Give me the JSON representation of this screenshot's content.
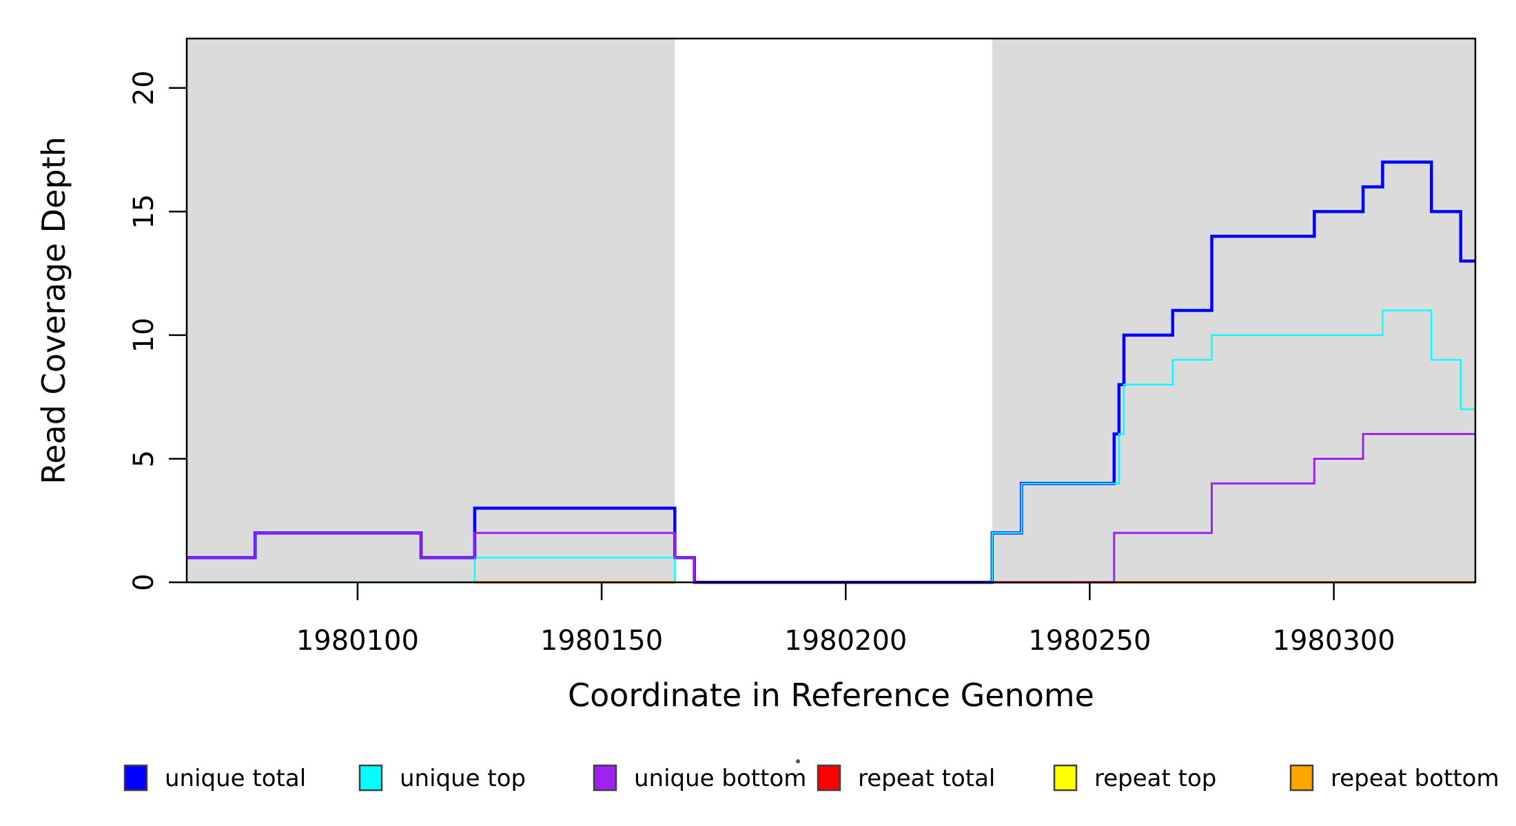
{
  "chart_data": {
    "type": "line",
    "subtype": "step-coverage-plot",
    "title": "",
    "xlabel": "Coordinate in Reference Genome",
    "ylabel": "Read Coverage Depth",
    "xlim": [
      1980065,
      1980329
    ],
    "ylim": [
      0,
      22
    ],
    "x_ticks": [
      1980100,
      1980150,
      1980200,
      1980250,
      1980300
    ],
    "y_ticks": [
      0,
      5,
      10,
      15,
      20
    ],
    "grid": false,
    "background": "#FFFFFF",
    "box_color": "#000000",
    "shade_color": "#DBDBDB",
    "shaded_regions": [
      [
        1980065,
        1980165
      ],
      [
        1980230,
        1980329
      ]
    ],
    "draw_order": [
      "unique total",
      "unique top",
      "repeat top",
      "repeat total",
      "repeat bottom",
      "unique bottom"
    ],
    "series": [
      {
        "name": "unique total",
        "color": "#0000FF",
        "lwd": 4.5,
        "parts": [
          [
            [
              1980065,
              1
            ],
            [
              1980079,
              2
            ],
            [
              1980113,
              1
            ],
            [
              1980124,
              3
            ],
            [
              1980165,
              1
            ],
            [
              1980169,
              0
            ],
            [
              1980230,
              2
            ],
            [
              1980236,
              4
            ],
            [
              1980255,
              6
            ],
            [
              1980256,
              8
            ],
            [
              1980257,
              10
            ],
            [
              1980267,
              11
            ],
            [
              1980275,
              14
            ],
            [
              1980296,
              15
            ],
            [
              1980306,
              16
            ],
            [
              1980310,
              17
            ],
            [
              1980320,
              15
            ],
            [
              1980326,
              13
            ],
            [
              1980329,
              13
            ]
          ]
        ]
      },
      {
        "name": "unique top",
        "color": "#00FFFF",
        "lwd": 2.4,
        "parts": [
          [
            [
              1980065,
              0
            ],
            [
              1980124,
              1
            ],
            [
              1980165,
              0
            ]
          ],
          [
            [
              1980230,
              0
            ],
            [
              1980230,
              2
            ],
            [
              1980236,
              4
            ],
            [
              1980256,
              6
            ],
            [
              1980257,
              8
            ],
            [
              1980267,
              9
            ],
            [
              1980275,
              10
            ],
            [
              1980310,
              11
            ],
            [
              1980320,
              9
            ],
            [
              1980326,
              7
            ],
            [
              1980329,
              7
            ]
          ]
        ]
      },
      {
        "name": "unique bottom",
        "color": "#A020F0",
        "lwd": 3,
        "parts": [
          [
            [
              1980065,
              1
            ],
            [
              1980079,
              2
            ],
            [
              1980113,
              1
            ],
            [
              1980124,
              2
            ],
            [
              1980165,
              1
            ],
            [
              1980169,
              0
            ],
            [
              1980255,
              2
            ],
            [
              1980275,
              4
            ],
            [
              1980296,
              5
            ],
            [
              1980306,
              6
            ],
            [
              1980329,
              6
            ]
          ]
        ]
      },
      {
        "name": "repeat total",
        "color": "#FF0000",
        "lwd": 3.6,
        "parts": [
          [
            [
              1980230,
              0
            ],
            [
              1980255,
              0
            ]
          ]
        ]
      },
      {
        "name": "repeat top",
        "color": "#FFFF00",
        "lwd": 3.2,
        "parts": [
          [
            [
              1980124,
              0
            ],
            [
              1980165,
              0
            ]
          ],
          [
            [
              1980255,
              0
            ],
            [
              1980329,
              0
            ]
          ]
        ]
      },
      {
        "name": "repeat bottom",
        "color": "#FFA500",
        "lwd": 3.8,
        "parts": [
          [
            [
              1980124,
              0
            ],
            [
              1980165,
              0
            ]
          ],
          [
            [
              1980255,
              0
            ],
            [
              1980329,
              0
            ]
          ]
        ]
      }
    ],
    "legend": [
      {
        "label": "unique total",
        "color": "#0000FF"
      },
      {
        "label": "unique top",
        "color": "#00FFFF"
      },
      {
        "label": "unique bottom",
        "color": "#A020F0"
      },
      {
        "label": "repeat total",
        "color": "#FF0000"
      },
      {
        "label": "repeat top",
        "color": "#FFFF00"
      },
      {
        "label": "repeat bottom",
        "color": "#FFA500"
      }
    ],
    "legend_position": "bottom"
  }
}
